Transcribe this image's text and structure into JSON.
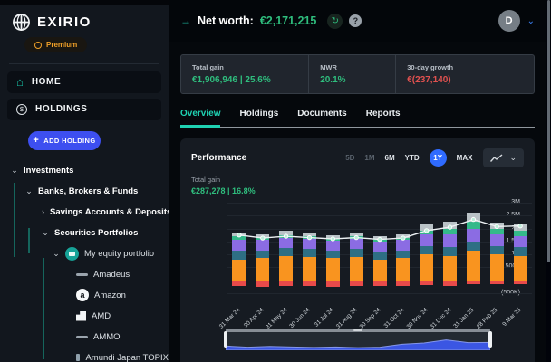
{
  "sidebar": {
    "logo_text": "EXIRIO",
    "premium_label": "Premium",
    "nav_items": [
      {
        "label": "HOME",
        "icon": "home-icon",
        "active": true
      },
      {
        "label": "HOLDINGS",
        "icon": "holdings-icon",
        "active": false
      }
    ],
    "add_holding_label": "ADD HOLDING",
    "tree": [
      {
        "label": "Investments",
        "level": 0,
        "chevron": "down",
        "bold": true,
        "icon": null
      },
      {
        "label": "Banks, Brokers & Funds",
        "level": 1,
        "chevron": "down",
        "bold": true,
        "icon": null
      },
      {
        "label": "Savings Accounts & Deposits",
        "level": 2,
        "chevron": "right",
        "bold": true,
        "icon": null
      },
      {
        "label": "Securities Portfolios",
        "level": 2,
        "chevron": "down",
        "bold": true,
        "icon": null
      },
      {
        "label": "My equity portfolio",
        "level": 3,
        "chevron": "down",
        "bold": false,
        "icon": "portfolio-icon"
      },
      {
        "label": "Amadeus",
        "level": 4,
        "chevron": null,
        "bold": false,
        "icon": "amadeus-logo"
      },
      {
        "label": "Amazon",
        "level": 4,
        "chevron": null,
        "bold": false,
        "icon": "amazon-logo"
      },
      {
        "label": "AMD",
        "level": 4,
        "chevron": null,
        "bold": false,
        "icon": "amd-logo"
      },
      {
        "label": "AMMO",
        "level": 4,
        "chevron": null,
        "bold": false,
        "icon": "ammo-logo"
      },
      {
        "label": "Amundi Japan TOPIX",
        "level": 4,
        "chevron": null,
        "bold": false,
        "icon": "amundi-logo"
      }
    ]
  },
  "header": {
    "net_worth_label": "Net worth:",
    "net_worth_value": "€2,171,215",
    "avatar_initial": "D"
  },
  "stats": [
    {
      "label": "Total gain",
      "value": "€1,906,946 | 25.6%",
      "tone": "positive"
    },
    {
      "label": "MWR",
      "value": "20.1%",
      "tone": "positive"
    },
    {
      "label": "30-day growth",
      "value": "€(237,140)",
      "tone": "negative"
    }
  ],
  "tabs": [
    {
      "label": "Overview",
      "active": true
    },
    {
      "label": "Holdings",
      "active": false
    },
    {
      "label": "Documents",
      "active": false
    },
    {
      "label": "Reports",
      "active": false
    }
  ],
  "performance": {
    "title": "Performance",
    "ranges": [
      {
        "label": "5D",
        "state": "disabled"
      },
      {
        "label": "1M",
        "state": "disabled"
      },
      {
        "label": "6M",
        "state": "normal"
      },
      {
        "label": "YTD",
        "state": "normal"
      },
      {
        "label": "1Y",
        "state": "active"
      },
      {
        "label": "MAX",
        "state": "normal"
      }
    ],
    "total_gain_label": "Total gain",
    "total_gain_value": "€287,278 | 16.8%"
  },
  "icons": {
    "arrow_right": "→",
    "refresh": "↻",
    "help": "?",
    "chevron_down": "⌄",
    "chevron_right": "›",
    "plus": "+",
    "dollar": "$",
    "amazon_a": "a",
    "home": "⌂"
  },
  "colors": {
    "accent_teal": "#1fd1b2",
    "positive_green": "#2fbe7e",
    "negative_red": "#e0514f",
    "primary_blue": "#3d4ff0",
    "active_range_blue": "#2f6bff",
    "premium_orange": "#f0a028"
  },
  "chart_data": {
    "type": "bar",
    "stacked": true,
    "title": "Performance",
    "legend": false,
    "grid": true,
    "categories": [
      "31 Mar 24",
      "30 Apr 24",
      "31 May 24",
      "30 Jun 24",
      "31 Jul 24",
      "31 Aug 24",
      "30 Sep 24",
      "31 Oct 24",
      "30 Nov 24",
      "31 Dec 24",
      "31 Jan 25",
      "28 Feb 25",
      "9 Mar 25"
    ],
    "ylim": [
      -0.5,
      3.0
    ],
    "yticks": [
      {
        "label": "3M",
        "value": 3.0
      },
      {
        "label": "2.5M",
        "value": 2.5
      },
      {
        "label": "2M",
        "value": 2.0
      },
      {
        "label": "1.5M",
        "value": 1.5
      },
      {
        "label": "1M",
        "value": 1.0
      },
      {
        "label": "500K",
        "value": 0.5
      },
      {
        "label": "0",
        "value": 0
      },
      {
        "label": "(500K)",
        "value": -0.5
      }
    ],
    "series": [
      {
        "name": "segment-orange",
        "color": "#f9941f",
        "values": [
          0.8,
          0.85,
          0.95,
          0.9,
          0.85,
          0.9,
          0.8,
          0.85,
          1.0,
          0.95,
          1.15,
          1.0,
          0.95
        ]
      },
      {
        "name": "segment-teal",
        "color": "#2e6f84",
        "values": [
          0.35,
          0.3,
          0.3,
          0.3,
          0.3,
          0.3,
          0.3,
          0.3,
          0.32,
          0.35,
          0.35,
          0.32,
          0.32
        ]
      },
      {
        "name": "segment-purple",
        "color": "#8b6ce3",
        "values": [
          0.42,
          0.4,
          0.4,
          0.4,
          0.38,
          0.4,
          0.4,
          0.4,
          0.45,
          0.48,
          0.5,
          0.45,
          0.45
        ]
      },
      {
        "name": "segment-green",
        "color": "#34b98a",
        "values": [
          0.12,
          0.1,
          0.1,
          0.1,
          0.1,
          0.1,
          0.1,
          0.1,
          0.15,
          0.22,
          0.28,
          0.2,
          0.18
        ]
      },
      {
        "name": "segment-gray",
        "color": "#b9c2c6",
        "values": [
          0.15,
          0.12,
          0.15,
          0.12,
          0.12,
          0.13,
          0.12,
          0.13,
          0.28,
          0.25,
          0.32,
          0.25,
          0.25
        ]
      },
      {
        "name": "segment-red-negative",
        "color": "#e84a4a",
        "values": [
          -0.2,
          -0.22,
          -0.2,
          -0.2,
          -0.22,
          -0.2,
          -0.2,
          -0.2,
          -0.15,
          -0.18,
          -0.1,
          -0.12,
          -0.1
        ]
      }
    ],
    "line": {
      "name": "net-worth-line",
      "color": "#eef2f4",
      "values": [
        1.75,
        1.63,
        1.7,
        1.65,
        1.6,
        1.65,
        1.58,
        1.63,
        1.92,
        2.05,
        2.35,
        2.08,
        2.1
      ]
    }
  }
}
